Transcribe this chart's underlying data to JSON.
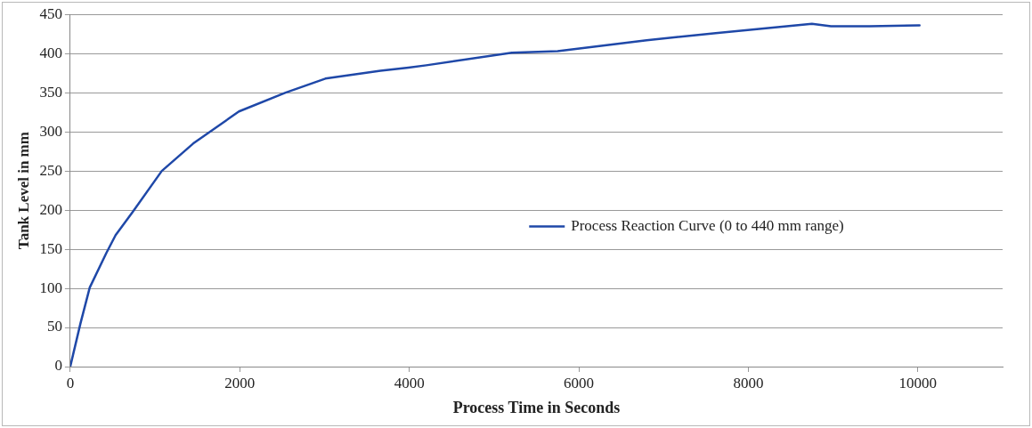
{
  "chart_data": {
    "type": "line",
    "xlabel": "Process Time in Seconds",
    "ylabel": "Tank Level in mm",
    "xlim": [
      0,
      11000
    ],
    "xticks": [
      0,
      2000,
      4000,
      6000,
      8000,
      10000
    ],
    "ylim": [
      0,
      450
    ],
    "yticks": [
      0,
      50,
      100,
      150,
      200,
      250,
      300,
      350,
      400,
      450
    ],
    "grid": "y",
    "legend": "center",
    "marker": "none",
    "line_style": "solid",
    "series": [
      {
        "name": "Process Reaction Curve (0 to 440 mm range)",
        "color": "#1f48a8",
        "x": [
          0,
          120,
          230,
          425,
          535,
          740,
          1080,
          1450,
          1990,
          2540,
          3010,
          3660,
          3990,
          4200,
          5210,
          5750,
          6800,
          7615,
          8750,
          8975,
          9430,
          10020
        ],
        "values": [
          0,
          55,
          101,
          145,
          168,
          198,
          250,
          285,
          326,
          350,
          368,
          378,
          382,
          385,
          401,
          403,
          417,
          426,
          438,
          435,
          435,
          436
        ]
      }
    ]
  }
}
